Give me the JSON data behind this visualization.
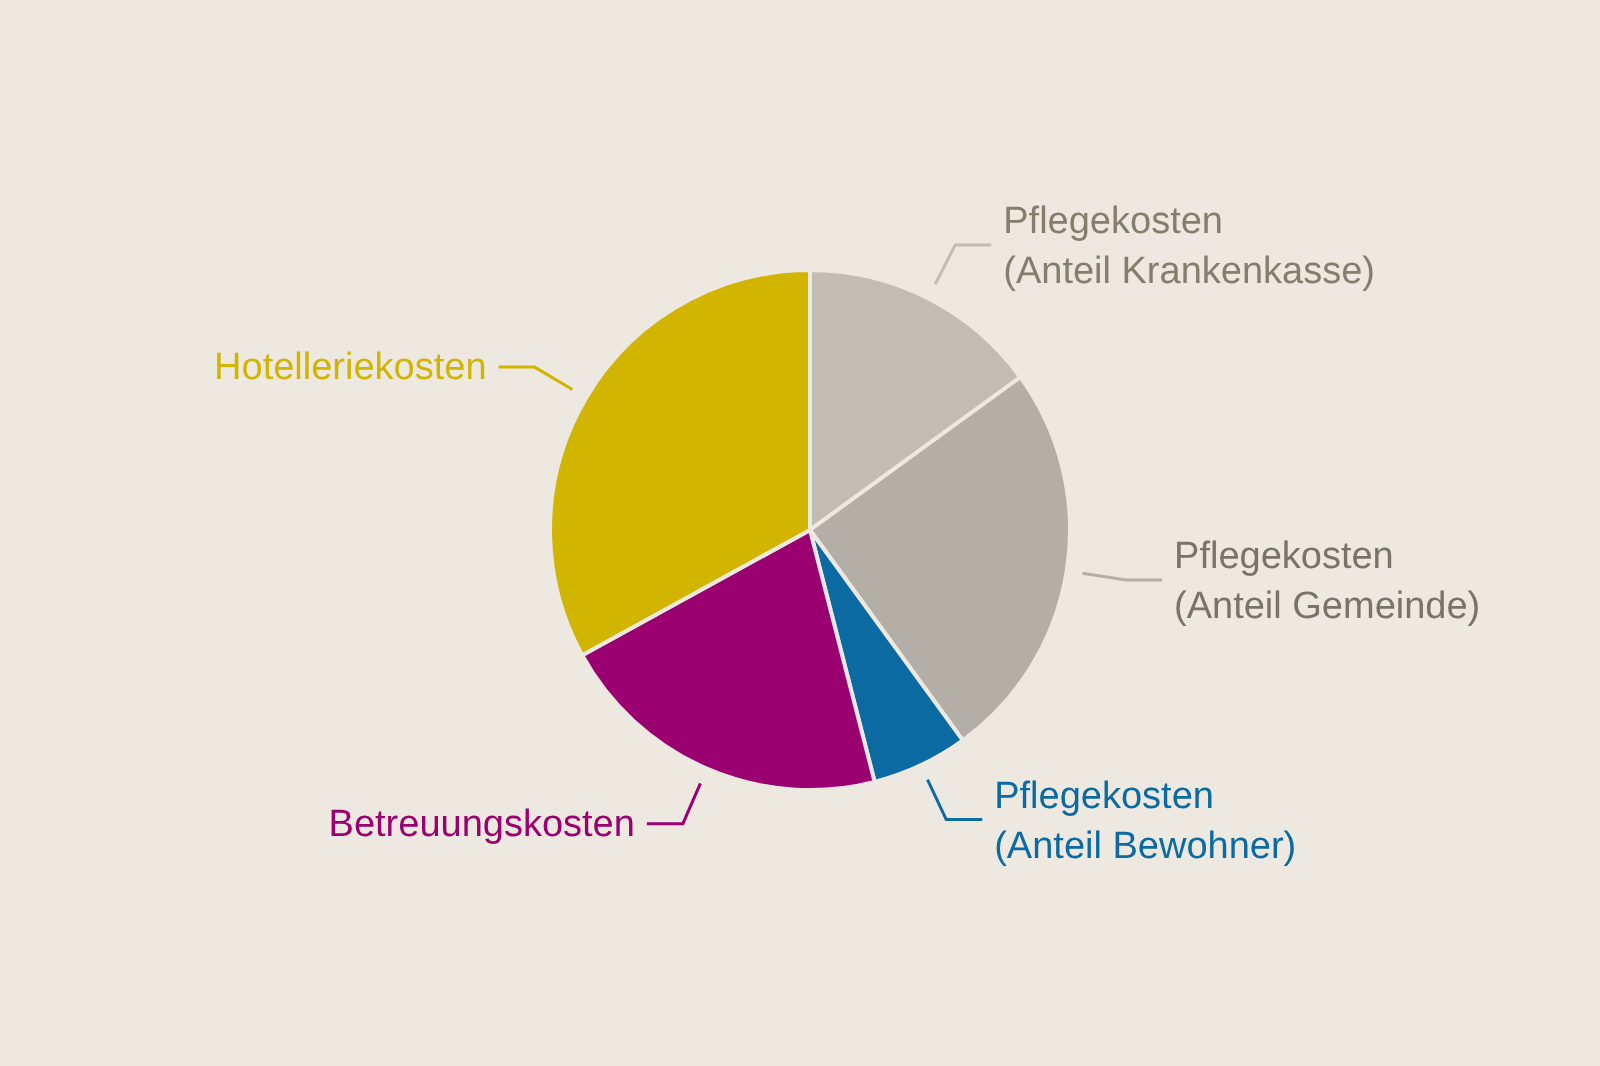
{
  "chart_data": {
    "type": "pie",
    "categories": [
      "Pflegekosten (Anteil Krankenkasse)",
      "Pflegekosten (Anteil Gemeinde)",
      "Pflegekosten (Anteil Bewohner)",
      "Betreuungskosten",
      "Hotelleriekosten"
    ],
    "values": [
      15,
      25,
      6,
      21,
      33
    ],
    "colors": [
      "#c2bdb4",
      "#b3afa6",
      "#0a6aa1",
      "#9b0070",
      "#d1b500"
    ]
  }
}
